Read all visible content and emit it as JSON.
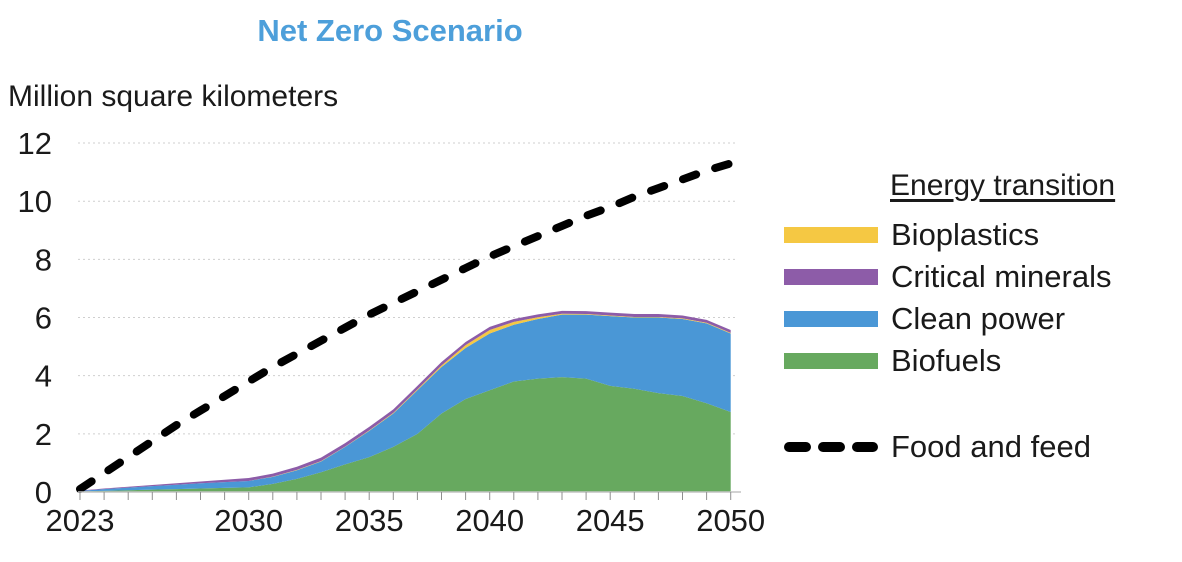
{
  "header": {
    "title": "Net Zero Scenario",
    "title_color": "#4D9FDA",
    "unit_label": "Million square kilometers"
  },
  "legend": {
    "group_title": "Energy transition",
    "items": [
      {
        "label": "Bioplastics",
        "color": "#F5C843"
      },
      {
        "label": "Critical minerals",
        "color": "#8D5CA8"
      },
      {
        "label": "Clean power",
        "color": "#4A97D6"
      },
      {
        "label": "Biofuels",
        "color": "#67A95F"
      }
    ],
    "line_item": {
      "label": "Food and feed",
      "color": "#000000",
      "style": "dashed"
    }
  },
  "chart_data": {
    "type": "area",
    "title": "Net Zero Scenario",
    "ylabel": "Million square kilometers",
    "xlabel": "",
    "ylim": [
      0,
      12
    ],
    "y_ticks": [
      0,
      2,
      4,
      6,
      8,
      10,
      12
    ],
    "grid": "horizontal-dotted",
    "legend_position": "right",
    "x": [
      2023,
      2024,
      2025,
      2026,
      2027,
      2028,
      2029,
      2030,
      2031,
      2032,
      2033,
      2034,
      2035,
      2036,
      2037,
      2038,
      2039,
      2040,
      2041,
      2042,
      2043,
      2044,
      2045,
      2046,
      2047,
      2048,
      2049,
      2050
    ],
    "x_tick_labels": [
      "2023",
      "2030",
      "2035",
      "2040",
      "2045",
      "2050"
    ],
    "stack_series": [
      {
        "name": "Biofuels",
        "color": "#67A95F",
        "values": [
          0.02,
          0.04,
          0.06,
          0.08,
          0.1,
          0.12,
          0.14,
          0.16,
          0.28,
          0.45,
          0.68,
          0.95,
          1.2,
          1.55,
          2.0,
          2.7,
          3.2,
          3.5,
          3.8,
          3.9,
          3.95,
          3.9,
          3.65,
          3.55,
          3.4,
          3.3,
          3.05,
          2.75
        ]
      },
      {
        "name": "Clean power",
        "color": "#4A97D6",
        "values": [
          0.02,
          0.06,
          0.09,
          0.12,
          0.15,
          0.18,
          0.2,
          0.22,
          0.24,
          0.3,
          0.37,
          0.6,
          0.9,
          1.15,
          1.5,
          1.6,
          1.75,
          1.95,
          1.95,
          2.05,
          2.15,
          2.2,
          2.4,
          2.45,
          2.6,
          2.65,
          2.75,
          2.7
        ]
      },
      {
        "name": "Bioplastics",
        "color": "#F5C843",
        "values": [
          0.0,
          0.0,
          0.0,
          0.0,
          0.0,
          0.0,
          0.0,
          0.0,
          0.01,
          0.01,
          0.01,
          0.01,
          0.02,
          0.02,
          0.03,
          0.05,
          0.1,
          0.12,
          0.1,
          0.06,
          0.03,
          0.02,
          0.02,
          0.02,
          0.02,
          0.02,
          0.02,
          0.02
        ]
      },
      {
        "name": "Critical minerals",
        "color": "#8D5CA8",
        "values": [
          0.01,
          0.02,
          0.03,
          0.04,
          0.05,
          0.06,
          0.08,
          0.1,
          0.1,
          0.11,
          0.12,
          0.12,
          0.12,
          0.12,
          0.12,
          0.12,
          0.11,
          0.11,
          0.1,
          0.1,
          0.1,
          0.1,
          0.1,
          0.1,
          0.1,
          0.1,
          0.1,
          0.1
        ]
      }
    ],
    "line_series": {
      "name": "Food and feed",
      "color": "#000000",
      "dashed": true,
      "values": [
        0.1,
        0.65,
        1.2,
        1.75,
        2.3,
        2.8,
        3.3,
        3.8,
        4.3,
        4.75,
        5.2,
        5.65,
        6.1,
        6.5,
        6.9,
        7.3,
        7.7,
        8.1,
        8.45,
        8.8,
        9.15,
        9.5,
        9.8,
        10.15,
        10.45,
        10.75,
        11.05,
        11.3
      ]
    }
  }
}
